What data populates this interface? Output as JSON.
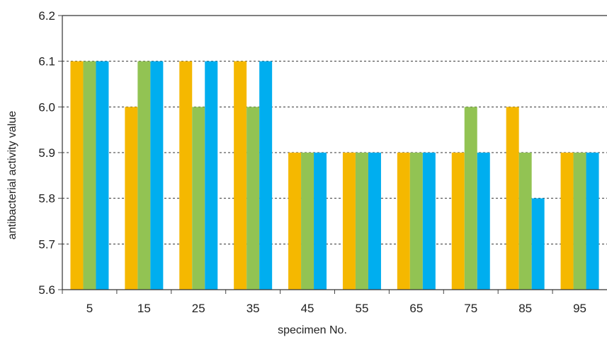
{
  "chart_data": {
    "type": "bar",
    "title": "",
    "xlabel": "specimen No.",
    "ylabel": "antibacterial activity value",
    "ylim": [
      5.6,
      6.2
    ],
    "yticks": [
      "5.6",
      "5.7",
      "5.8",
      "5.9",
      "6.0",
      "6.1",
      "6.2"
    ],
    "categories": [
      "5",
      "15",
      "25",
      "35",
      "45",
      "55",
      "65",
      "75",
      "85",
      "95"
    ],
    "series": [
      {
        "values": [
          6.1,
          6.0,
          6.1,
          6.1,
          5.9,
          5.9,
          5.9,
          5.9,
          6.0,
          5.9
        ],
        "color": "#F5B800"
      },
      {
        "values": [
          6.1,
          6.1,
          6.0,
          6.0,
          5.9,
          5.9,
          5.9,
          6.0,
          5.9,
          5.9
        ],
        "color": "#92C353"
      },
      {
        "values": [
          6.1,
          6.1,
          6.1,
          6.1,
          5.9,
          5.9,
          5.9,
          5.9,
          5.8,
          5.9
        ],
        "color": "#00AEEF"
      }
    ],
    "grid": "horizontal dashed",
    "legend": "none"
  }
}
